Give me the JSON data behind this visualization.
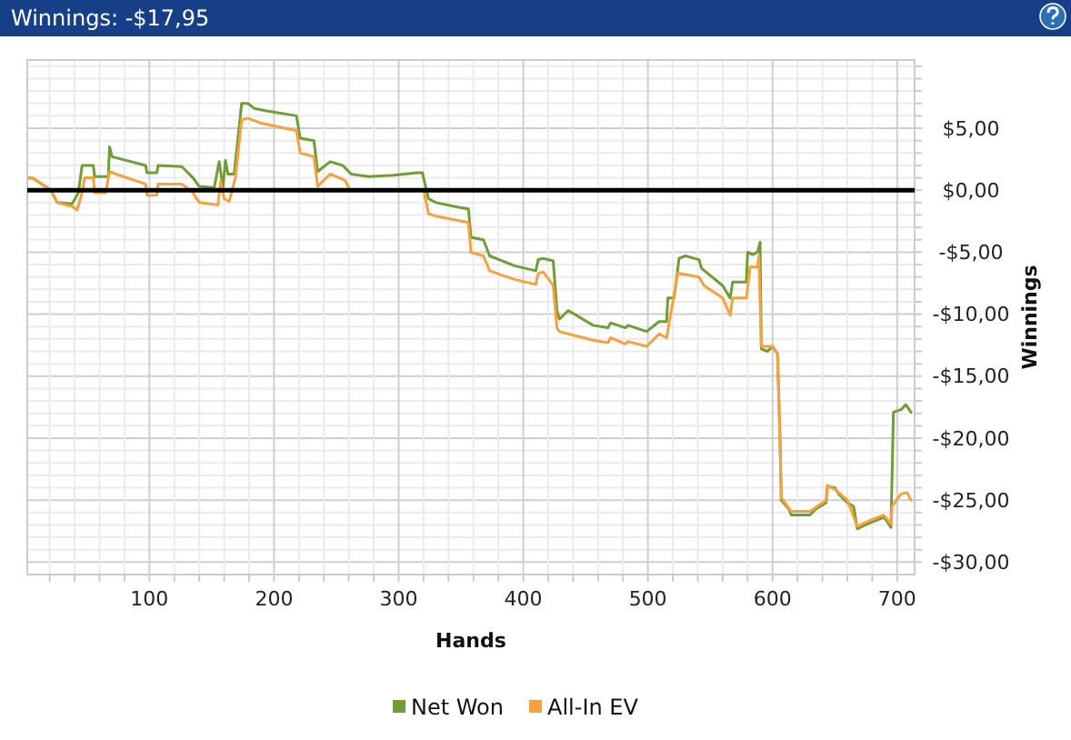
{
  "chart_data": {
    "type": "line",
    "title": "Winnings: -$17,95",
    "xlabel": "Hands",
    "ylabel": "Winnings",
    "xlim": [
      2,
      714
    ],
    "ylim": [
      -31,
      10.5
    ],
    "xticks": [
      {
        "value": 20,
        "label": null
      },
      {
        "value": 40,
        "label": null
      },
      {
        "value": 60,
        "label": null
      },
      {
        "value": 80,
        "label": null
      },
      100,
      {
        "value": 120,
        "label": null
      },
      {
        "value": 140,
        "label": null
      },
      {
        "value": 160,
        "label": null
      },
      {
        "value": 180,
        "label": null
      },
      200,
      {
        "value": 220,
        "label": null
      },
      {
        "value": 240,
        "label": null
      },
      {
        "value": 260,
        "label": null
      },
      {
        "value": 280,
        "label": null
      },
      300,
      {
        "value": 320,
        "label": null
      },
      {
        "value": 340,
        "label": null
      },
      {
        "value": 360,
        "label": null
      },
      {
        "value": 380,
        "label": null
      },
      400,
      {
        "value": 420,
        "label": null
      },
      {
        "value": 440,
        "label": null
      },
      {
        "value": 460,
        "label": null
      },
      {
        "value": 480,
        "label": null
      },
      500,
      {
        "value": 520,
        "label": null
      },
      {
        "value": 540,
        "label": null
      },
      {
        "value": 560,
        "label": null
      },
      {
        "value": 580,
        "label": null
      },
      600,
      {
        "value": 620,
        "label": null
      },
      {
        "value": 640,
        "label": null
      },
      {
        "value": 660,
        "label": null
      },
      {
        "value": 680,
        "label": null
      },
      700
    ],
    "yticks": [
      {
        "value": -30,
        "label": "-$30,00"
      },
      {
        "value": -29,
        "label": null
      },
      {
        "value": -28,
        "label": null
      },
      {
        "value": -27,
        "label": null
      },
      {
        "value": -26,
        "label": null
      },
      {
        "value": -25,
        "label": "-$25,00"
      },
      {
        "value": -24,
        "label": null
      },
      {
        "value": -23,
        "label": null
      },
      {
        "value": -22,
        "label": null
      },
      {
        "value": -21,
        "label": null
      },
      {
        "value": -20,
        "label": "-$20,00"
      },
      {
        "value": -19,
        "label": null
      },
      {
        "value": -18,
        "label": null
      },
      {
        "value": -17,
        "label": null
      },
      {
        "value": -16,
        "label": null
      },
      {
        "value": -15,
        "label": "-$15,00"
      },
      {
        "value": -14,
        "label": null
      },
      {
        "value": -13,
        "label": null
      },
      {
        "value": -12,
        "label": null
      },
      {
        "value": -11,
        "label": null
      },
      {
        "value": -10,
        "label": "-$10,00"
      },
      {
        "value": -9,
        "label": null
      },
      {
        "value": -8,
        "label": null
      },
      {
        "value": -7,
        "label": null
      },
      {
        "value": -6,
        "label": null
      },
      {
        "value": -5,
        "label": "-$5,00"
      },
      {
        "value": -4,
        "label": null
      },
      {
        "value": -3,
        "label": null
      },
      {
        "value": -2,
        "label": null
      },
      {
        "value": -1,
        "label": null
      },
      {
        "value": 0,
        "label": "$0,00"
      },
      {
        "value": 1,
        "label": null
      },
      {
        "value": 2,
        "label": null
      },
      {
        "value": 3,
        "label": null
      },
      {
        "value": 4,
        "label": null
      },
      {
        "value": 5,
        "label": "$5,00"
      },
      {
        "value": 6,
        "label": null
      },
      {
        "value": 7,
        "label": null
      },
      {
        "value": 8,
        "label": null
      },
      {
        "value": 9,
        "label": null
      },
      {
        "value": 10,
        "label": null
      }
    ],
    "grid": true,
    "legend": "bottom",
    "marker": "none",
    "line_style": "solid",
    "ref_lines": [
      {
        "axis": "y",
        "value": 0,
        "color": "#000000"
      }
    ],
    "series": [
      {
        "name": "Net Won",
        "color": "#6e9e34",
        "x": [
          2.5,
          6,
          21,
          26,
          38,
          43,
          46,
          55,
          56,
          67,
          68,
          70,
          97,
          98,
          106,
          107,
          126,
          135,
          140,
          152,
          156,
          159,
          161,
          163,
          168,
          174,
          179,
          184,
          194,
          218,
          221,
          232,
          235,
          245,
          255,
          262,
          276,
          296,
          315,
          319,
          324,
          330,
          349,
          356,
          358,
          368,
          373,
          393,
          410,
          412,
          416,
          424,
          427,
          429,
          436,
          456,
          468,
          470,
          482,
          484,
          499,
          509,
          515,
          516,
          521,
          525,
          530,
          541,
          543,
          560,
          566,
          568,
          579,
          580,
          584,
          588,
          590,
          591,
          596,
          600,
          604,
          606,
          607,
          613,
          615,
          630,
          635,
          643,
          644,
          650,
          653,
          660,
          665,
          668,
          679,
          689,
          691,
          695,
          696,
          697,
          703,
          707,
          711,
          712
        ],
        "values": [
          0.95,
          1.0,
          0,
          -1.0,
          -1.1,
          -0.2,
          2.0,
          2.0,
          1.1,
          1.1,
          3.5,
          2.7,
          2.0,
          1.4,
          1.4,
          2.0,
          1.9,
          1.0,
          0.3,
          0.2,
          2.3,
          0.2,
          2.4,
          1.3,
          1.3,
          7.0,
          7.0,
          6.6,
          6.4,
          6.0,
          4.2,
          4.0,
          1.5,
          2.3,
          2.0,
          1.3,
          1.1,
          1.2,
          1.4,
          1.4,
          -0.7,
          -1.0,
          -1.4,
          -1.5,
          -3.8,
          -4.0,
          -5.3,
          -6.1,
          -6.5,
          -5.6,
          -5.5,
          -5.7,
          -9.7,
          -10.4,
          -9.7,
          -10.9,
          -11.1,
          -10.7,
          -11.1,
          -10.9,
          -11.4,
          -10.6,
          -10.6,
          -8.7,
          -8.7,
          -5.5,
          -5.3,
          -5.6,
          -6.3,
          -7.7,
          -8.7,
          -7.4,
          -7.4,
          -5.0,
          -5.2,
          -5.0,
          -4.2,
          -12.8,
          -13.0,
          -12.6,
          -13.2,
          -20.1,
          -25.0,
          -25.7,
          -26.2,
          -26.2,
          -25.7,
          -25.2,
          -23.9,
          -24.0,
          -24.5,
          -25.2,
          -25.5,
          -27.3,
          -26.8,
          -26.4,
          -26.6,
          -27.2,
          -22.6,
          -17.9,
          -17.7,
          -17.3,
          -17.9,
          -17.95
        ]
      },
      {
        "name": "All-In EV",
        "color": "#f7a040",
        "x": [
          2.5,
          6,
          21,
          26,
          38,
          42,
          46,
          48,
          55,
          56,
          65,
          68,
          73,
          97,
          98,
          106,
          107,
          126,
          135,
          140,
          155,
          157,
          160,
          164,
          169,
          174,
          179,
          190,
          218,
          221,
          232,
          235,
          245,
          257,
          261,
          320,
          324,
          330,
          356,
          358,
          368,
          373,
          393,
          410,
          412,
          416,
          424,
          427,
          429,
          456,
          468,
          470,
          482,
          484,
          499,
          509,
          515,
          524,
          541,
          545,
          560,
          566,
          568,
          579,
          582,
          588,
          589,
          591,
          600,
          604,
          606,
          607,
          615,
          630,
          643,
          644,
          651,
          660,
          668,
          679,
          689,
          695,
          696,
          703,
          708,
          711,
          712
        ],
        "values": [
          0.95,
          1.0,
          0,
          -1.0,
          -1.3,
          -1.6,
          -0.2,
          1.0,
          1.0,
          -0.2,
          -0.2,
          1.5,
          1.3,
          0.5,
          -0.4,
          -0.4,
          0.5,
          0.5,
          -0.2,
          -1.0,
          -1.2,
          0.7,
          -0.7,
          -0.9,
          1.0,
          5.7,
          5.8,
          5.4,
          4.8,
          3.0,
          2.7,
          0.3,
          1.3,
          0.8,
          0,
          0,
          -1.9,
          -2.1,
          -2.6,
          -5.0,
          -5.3,
          -6.5,
          -7.2,
          -7.6,
          -6.7,
          -6.6,
          -7.7,
          -11.1,
          -11.4,
          -12.1,
          -12.3,
          -11.9,
          -12.4,
          -12.2,
          -12.6,
          -11.6,
          -11.9,
          -6.7,
          -7.0,
          -7.7,
          -8.7,
          -10.1,
          -8.7,
          -8.7,
          -6.2,
          -6.2,
          -5.3,
          -12.6,
          -12.6,
          -13.2,
          -20.1,
          -24.8,
          -25.9,
          -25.9,
          -25.0,
          -23.8,
          -24.2,
          -25.0,
          -27.1,
          -26.6,
          -26.2,
          -26.9,
          -25.5,
          -24.5,
          -24.4,
          -25.0,
          -25.0
        ]
      }
    ]
  }
}
